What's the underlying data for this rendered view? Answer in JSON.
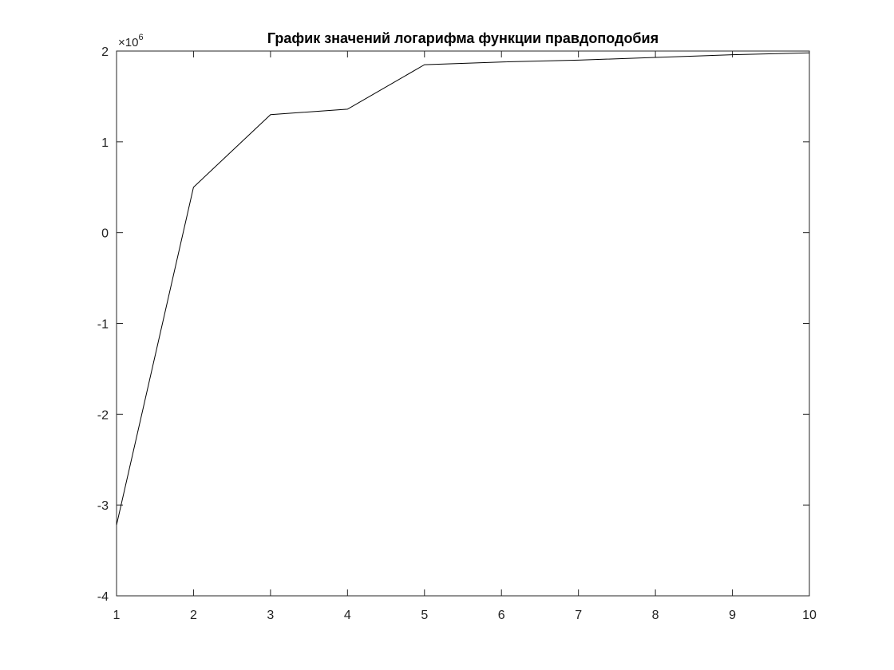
{
  "chart_data": {
    "type": "line",
    "title": "График значений логарифма функции правдоподобия",
    "xlabel": "",
    "ylabel": "",
    "y_multiplier": {
      "base": "10",
      "exponent": "6"
    },
    "xlim": [
      1,
      10
    ],
    "ylim": [
      -4,
      2
    ],
    "x_ticks": [
      "1",
      "2",
      "3",
      "4",
      "5",
      "6",
      "7",
      "8",
      "9",
      "10"
    ],
    "y_ticks": [
      "-4",
      "-3",
      "-2",
      "-1",
      "0",
      "1",
      "2"
    ],
    "grid": false,
    "line_color": "#000000",
    "series": [
      {
        "x": [
          1,
          2,
          3,
          4,
          5,
          6,
          7,
          8,
          9,
          10
        ],
        "values": [
          -3.22,
          0.5,
          1.3,
          1.36,
          1.85,
          1.88,
          1.9,
          1.93,
          1.96,
          1.98
        ]
      }
    ]
  }
}
